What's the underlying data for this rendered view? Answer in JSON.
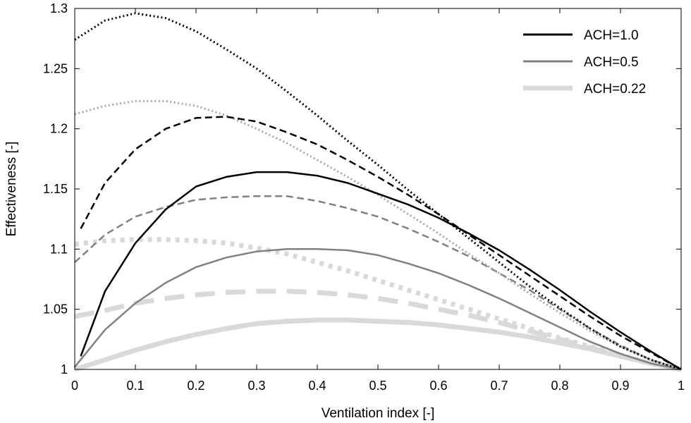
{
  "chart_data": {
    "type": "line",
    "xlabel": "Ventilation index [-]",
    "ylabel": "Effectiveness [-]",
    "xlim": [
      0,
      1
    ],
    "ylim": [
      1,
      1.3
    ],
    "xticks": [
      0,
      0.1,
      0.2,
      0.3,
      0.4,
      0.5,
      0.6,
      0.7,
      0.8,
      0.9,
      1
    ],
    "xtick_labels": [
      "0",
      "0.1",
      "0.2",
      "0.3",
      "0.4",
      "0.5",
      "0.6",
      "0.7",
      "0.8",
      "0.9",
      "1"
    ],
    "yticks": [
      1,
      1.05,
      1.1,
      1.15,
      1.2,
      1.25,
      1.3
    ],
    "ytick_labels": [
      "1",
      "1.05",
      "1.1",
      "1.15",
      "1.2",
      "1.25",
      "1.3"
    ],
    "grid": false,
    "legend_position": "top-right",
    "legend": [
      {
        "label": "ACH=1.0",
        "color": "#000000",
        "width": 3
      },
      {
        "label": "ACH=0.5",
        "color": "#808080",
        "width": 3
      },
      {
        "label": "ACH=0.22",
        "color": "#d9d9d9",
        "width": 7
      }
    ],
    "series": [
      {
        "ach": "1.0",
        "style": "solid",
        "color": "#000000",
        "width": 2.5,
        "x": [
          0.01,
          0.05,
          0.1,
          0.15,
          0.2,
          0.25,
          0.3,
          0.35,
          0.4,
          0.45,
          0.5,
          0.55,
          0.6,
          0.65,
          0.7,
          0.75,
          0.8,
          0.85,
          0.9,
          0.95,
          1.0
        ],
        "y": [
          1.011,
          1.065,
          1.105,
          1.133,
          1.152,
          1.16,
          1.164,
          1.164,
          1.161,
          1.155,
          1.146,
          1.137,
          1.126,
          1.113,
          1.099,
          1.083,
          1.066,
          1.048,
          1.031,
          1.015,
          1.0
        ]
      },
      {
        "ach": "1.0",
        "style": "dashed",
        "color": "#000000",
        "width": 2.5,
        "x": [
          0.01,
          0.05,
          0.1,
          0.15,
          0.2,
          0.25,
          0.3,
          0.35,
          0.4,
          0.45,
          0.5,
          0.55,
          0.6,
          0.65,
          0.7,
          0.75,
          0.8,
          0.85,
          0.9,
          0.95,
          1.0
        ],
        "y": [
          1.117,
          1.155,
          1.183,
          1.2,
          1.209,
          1.21,
          1.206,
          1.197,
          1.187,
          1.174,
          1.16,
          1.145,
          1.129,
          1.112,
          1.095,
          1.078,
          1.061,
          1.044,
          1.028,
          1.014,
          1.0
        ]
      },
      {
        "ach": "1.0",
        "style": "dotted",
        "color": "#000000",
        "width": 3,
        "x": [
          0.0,
          0.05,
          0.1,
          0.15,
          0.2,
          0.25,
          0.3,
          0.35,
          0.4,
          0.45,
          0.5,
          0.55,
          0.6,
          0.65,
          0.7,
          0.75,
          0.8,
          0.85,
          0.9,
          0.95,
          1.0
        ],
        "y": [
          1.274,
          1.29,
          1.296,
          1.292,
          1.281,
          1.266,
          1.25,
          1.231,
          1.211,
          1.19,
          1.17,
          1.149,
          1.129,
          1.109,
          1.089,
          1.069,
          1.051,
          1.034,
          1.019,
          1.008,
          1.0
        ]
      },
      {
        "ach": "0.5",
        "style": "solid",
        "color": "#808080",
        "width": 2.5,
        "x": [
          0.0,
          0.05,
          0.1,
          0.15,
          0.2,
          0.25,
          0.3,
          0.35,
          0.4,
          0.45,
          0.5,
          0.55,
          0.6,
          0.65,
          0.7,
          0.75,
          0.8,
          0.85,
          0.9,
          0.95,
          1.0
        ],
        "y": [
          1.002,
          1.033,
          1.055,
          1.072,
          1.085,
          1.093,
          1.098,
          1.1,
          1.1,
          1.099,
          1.095,
          1.088,
          1.08,
          1.07,
          1.059,
          1.047,
          1.035,
          1.023,
          1.013,
          1.005,
          1.0
        ]
      },
      {
        "ach": "0.5",
        "style": "dashed",
        "color": "#808080",
        "width": 2.5,
        "x": [
          0.0,
          0.05,
          0.1,
          0.15,
          0.2,
          0.25,
          0.3,
          0.35,
          0.4,
          0.45,
          0.5,
          0.55,
          0.6,
          0.65,
          0.7,
          0.75,
          0.8,
          0.85,
          0.9,
          0.95,
          1.0
        ],
        "y": [
          1.089,
          1.112,
          1.127,
          1.135,
          1.141,
          1.143,
          1.144,
          1.144,
          1.14,
          1.134,
          1.127,
          1.117,
          1.106,
          1.094,
          1.08,
          1.066,
          1.05,
          1.034,
          1.02,
          1.008,
          1.0
        ]
      },
      {
        "ach": "0.5",
        "style": "dotted",
        "color": "#a6a6a6",
        "width": 3,
        "x": [
          0.0,
          0.05,
          0.1,
          0.15,
          0.2,
          0.25,
          0.3,
          0.35,
          0.4,
          0.45,
          0.5,
          0.55,
          0.6,
          0.65,
          0.7,
          0.75,
          0.8,
          0.85,
          0.9,
          0.95,
          1.0
        ],
        "y": [
          1.212,
          1.219,
          1.223,
          1.223,
          1.219,
          1.211,
          1.2,
          1.188,
          1.174,
          1.16,
          1.145,
          1.129,
          1.113,
          1.096,
          1.08,
          1.063,
          1.047,
          1.032,
          1.019,
          1.008,
          1.0
        ]
      },
      {
        "ach": "0.22",
        "style": "solid",
        "color": "#d9d9d9",
        "width": 7,
        "x": [
          0.0,
          0.05,
          0.1,
          0.15,
          0.2,
          0.25,
          0.3,
          0.35,
          0.4,
          0.45,
          0.5,
          0.55,
          0.6,
          0.65,
          0.7,
          0.75,
          0.8,
          0.85,
          0.9,
          0.95,
          1.0
        ],
        "y": [
          1.0,
          1.008,
          1.016,
          1.023,
          1.029,
          1.034,
          1.038,
          1.04,
          1.041,
          1.041,
          1.04,
          1.039,
          1.037,
          1.034,
          1.031,
          1.027,
          1.022,
          1.017,
          1.011,
          1.005,
          1.0
        ]
      },
      {
        "ach": "0.22",
        "style": "dashed",
        "color": "#d9d9d9",
        "width": 7,
        "x": [
          0.0,
          0.05,
          0.1,
          0.15,
          0.2,
          0.25,
          0.3,
          0.35,
          0.4,
          0.45,
          0.5,
          0.55,
          0.6,
          0.65,
          0.7,
          0.75,
          0.8,
          0.85,
          0.9,
          0.95,
          1.0
        ],
        "y": [
          1.044,
          1.049,
          1.055,
          1.059,
          1.062,
          1.064,
          1.065,
          1.065,
          1.064,
          1.062,
          1.059,
          1.055,
          1.05,
          1.045,
          1.039,
          1.032,
          1.025,
          1.018,
          1.011,
          1.005,
          1.0
        ]
      },
      {
        "ach": "0.22",
        "style": "dotted",
        "color": "#d9d9d9",
        "width": 7,
        "x": [
          0.0,
          0.05,
          0.1,
          0.15,
          0.2,
          0.25,
          0.3,
          0.35,
          0.4,
          0.45,
          0.5,
          0.55,
          0.6,
          0.65,
          0.7,
          0.75,
          0.8,
          0.85,
          0.9,
          0.95,
          1.0
        ],
        "y": [
          1.104,
          1.107,
          1.108,
          1.108,
          1.107,
          1.105,
          1.101,
          1.096,
          1.089,
          1.082,
          1.074,
          1.066,
          1.058,
          1.05,
          1.042,
          1.034,
          1.026,
          1.019,
          1.012,
          1.005,
          1.0
        ]
      }
    ]
  }
}
